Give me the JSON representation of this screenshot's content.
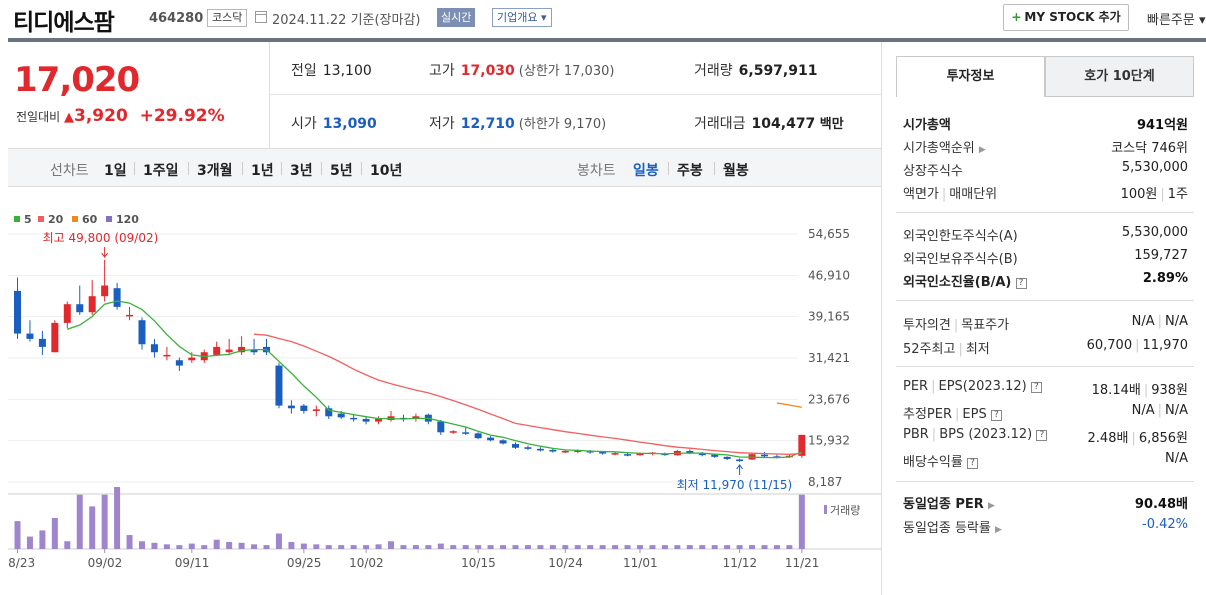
{
  "header": {
    "title": "티디에스팜",
    "code": "464280",
    "market": "코스닥",
    "date_text": "2024.11.22  기준(장마감)",
    "realtime_label": "실시간",
    "corp_label": "기업개요",
    "my_stock_label": "MY STOCK 추가",
    "quick_order_label": "빠른주문"
  },
  "price": {
    "current": "17,020",
    "change_label": "전일대비",
    "change_value": "3,920",
    "change_pct": "+29.92%"
  },
  "quote": {
    "prev_label": "전일",
    "prev": "13,100",
    "high_label": "고가",
    "high": "17,030",
    "upper_limit": "(상한가 17,030)",
    "volume_label": "거래량",
    "volume": "6,597,911",
    "open_label": "시가",
    "open": "13,090",
    "low_label": "저가",
    "low": "12,710",
    "lower_limit": "(하한가 9,170)",
    "amount_label": "거래대금",
    "amount": "104,477",
    "amount_unit": "백만"
  },
  "period": {
    "line_label": "선차트",
    "line_items": [
      "1일",
      "1주일",
      "3개월",
      "1년",
      "3년",
      "5년",
      "10년"
    ],
    "candle_label": "봉차트",
    "candle_items": [
      "일봉",
      "주봉",
      "월봉"
    ],
    "selected": "일봉"
  },
  "colors": {
    "up": "#e0282d",
    "down": "#1a5fc0",
    "ma5": "#3ab03a",
    "ma20": "#f06060",
    "ma60": "#f08a20",
    "ma120": "#8a6ec0",
    "volume": "#9f85cc"
  },
  "chart_data": {
    "type": "candlestick",
    "legend": [
      "5",
      "20",
      "60",
      "120"
    ],
    "max_label": "최고 49,800 (09/02)",
    "min_label": "최저 11,970 (11/15)",
    "volume_label": "거래량",
    "y_ticks": [
      "54,655",
      "46,910",
      "39,165",
      "31,421",
      "23,676",
      "15,932",
      "8,187"
    ],
    "ylim": [
      8187,
      54655
    ],
    "x_ticks": [
      "08/23",
      "09/02",
      "09/11",
      "09/25",
      "10/02",
      "10/15",
      "10/24",
      "11/01",
      "11/12",
      "11/21"
    ],
    "candles": [
      [
        44000,
        46500,
        35000,
        36000
      ],
      [
        36000,
        38500,
        34500,
        35000
      ],
      [
        35000,
        36500,
        32000,
        33500
      ],
      [
        32500,
        38500,
        32500,
        38000
      ],
      [
        38000,
        42000,
        37000,
        41500
      ],
      [
        41500,
        45000,
        39500,
        40000
      ],
      [
        40000,
        46000,
        39500,
        43000
      ],
      [
        43000,
        49800,
        42000,
        45000
      ],
      [
        44500,
        45500,
        40500,
        41000
      ],
      [
        39500,
        41000,
        38500,
        39500
      ],
      [
        38500,
        39000,
        33000,
        34000
      ],
      [
        34000,
        35000,
        31500,
        32500
      ],
      [
        32000,
        33500,
        31000,
        32000
      ],
      [
        31000,
        31500,
        29000,
        30000
      ],
      [
        31000,
        32500,
        30500,
        31500
      ],
      [
        31000,
        33000,
        30500,
        32500
      ],
      [
        32000,
        34500,
        32000,
        33500
      ],
      [
        32500,
        35000,
        32000,
        33000
      ],
      [
        32500,
        35500,
        32000,
        33500
      ],
      [
        33000,
        35000,
        32000,
        32500
      ],
      [
        33500,
        35000,
        32000,
        32500
      ],
      [
        30000,
        30500,
        22000,
        22500
      ],
      [
        22500,
        23500,
        21000,
        22000
      ],
      [
        22500,
        22800,
        21000,
        21500
      ],
      [
        21500,
        22500,
        20500,
        21800
      ],
      [
        22000,
        22500,
        20000,
        20500
      ],
      [
        21000,
        21500,
        20000,
        20300
      ],
      [
        20200,
        20800,
        19500,
        20000
      ],
      [
        20000,
        20500,
        19000,
        19500
      ],
      [
        19500,
        20500,
        19000,
        20000
      ],
      [
        19800,
        21500,
        19500,
        20500
      ],
      [
        20200,
        20800,
        19500,
        20000
      ],
      [
        20000,
        21000,
        19500,
        20500
      ],
      [
        20800,
        21000,
        19000,
        19500
      ],
      [
        19500,
        19800,
        17000,
        17500
      ],
      [
        17500,
        17900,
        17200,
        17700
      ],
      [
        17500,
        18500,
        17000,
        17300
      ],
      [
        17300,
        17500,
        16200,
        16400
      ],
      [
        16500,
        16800,
        15800,
        16000
      ],
      [
        16000,
        16200,
        15200,
        15400
      ],
      [
        15300,
        15600,
        14400,
        14600
      ],
      [
        14700,
        15000,
        14200,
        14400
      ],
      [
        14400,
        14700,
        13900,
        14100
      ],
      [
        14200,
        14400,
        13700,
        13900
      ],
      [
        14000,
        14200,
        13600,
        14000
      ],
      [
        13900,
        14300,
        13600,
        14100
      ],
      [
        14000,
        14200,
        13500,
        13800
      ],
      [
        13800,
        14000,
        13300,
        13700
      ],
      [
        13600,
        13900,
        13200,
        13600
      ],
      [
        13400,
        13700,
        13000,
        13200
      ],
      [
        13300,
        13700,
        13100,
        13500
      ],
      [
        13500,
        13800,
        13200,
        13700
      ],
      [
        13500,
        13700,
        13100,
        13300
      ],
      [
        13200,
        14200,
        13100,
        14000
      ],
      [
        14000,
        14300,
        13400,
        13600
      ],
      [
        13500,
        13800,
        13000,
        13300
      ],
      [
        13300,
        13500,
        12700,
        12900
      ],
      [
        12900,
        13000,
        12300,
        12500
      ],
      [
        12400,
        12600,
        11970,
        12100
      ],
      [
        12400,
        13600,
        12300,
        13400
      ],
      [
        13300,
        13800,
        12800,
        13000
      ],
      [
        13000,
        13300,
        12600,
        12800
      ],
      [
        13000,
        13400,
        12700,
        13100
      ],
      [
        13090,
        17030,
        12710,
        17020
      ]
    ],
    "volumes": [
      36,
      16,
      24,
      40,
      10,
      70,
      55,
      70,
      80,
      18,
      10,
      8,
      6,
      5,
      7,
      5,
      12,
      9,
      8,
      6,
      5,
      20,
      9,
      7,
      6,
      5,
      5,
      5,
      5,
      6,
      10,
      5,
      5,
      5,
      7,
      5,
      5,
      5,
      5,
      5,
      5,
      5,
      5,
      5,
      5,
      5,
      5,
      5,
      5,
      5,
      5,
      5,
      5,
      5,
      5,
      5,
      5,
      5,
      5,
      5,
      5,
      5,
      5,
      70
    ]
  },
  "right_panel": {
    "tab_invest": "투자정보",
    "tab_hoga": "호가 10단계",
    "market_cap_label": "시가총액",
    "market_cap": "941억원",
    "cap_rank_label": "시가총액순위",
    "cap_rank": "코스닥 746위",
    "shares_label": "상장주식수",
    "shares": "5,530,000",
    "face_label": "액면가",
    "trade_unit_label": "매매단위",
    "face_value": "100원",
    "trade_unit": "1주",
    "foreign_limit_label": "외국인한도주식수(A)",
    "foreign_limit": "5,530,000",
    "foreign_hold_label": "외국인보유주식수(B)",
    "foreign_hold": "159,727",
    "foreign_ratio_label": "외국인소진율(B/A)",
    "foreign_ratio": "2.89%",
    "opinion_label": "투자의견",
    "target_label": "목표주가",
    "opinion": "N/A",
    "target": "N/A",
    "w52_high_label": "52주최고",
    "w52_low_label": "최저",
    "w52_high": "60,700",
    "w52_low": "11,970",
    "per_label": "PER",
    "eps_label": "EPS(2023.12)",
    "per": "18.14배",
    "eps": "938원",
    "est_per_label": "추정PER",
    "est_eps_label": "EPS",
    "est_per": "N/A",
    "est_eps": "N/A",
    "pbr_label": "PBR",
    "bps_label": "BPS (2023.12)",
    "pbr": "2.48배",
    "bps": "6,856원",
    "dividend_label": "배당수익률",
    "dividend": "N/A",
    "ind_per_label": "동일업종 PER",
    "ind_per": "90.48배",
    "ind_rate_label": "동일업종 등락률",
    "ind_rate": "-0.42%"
  }
}
